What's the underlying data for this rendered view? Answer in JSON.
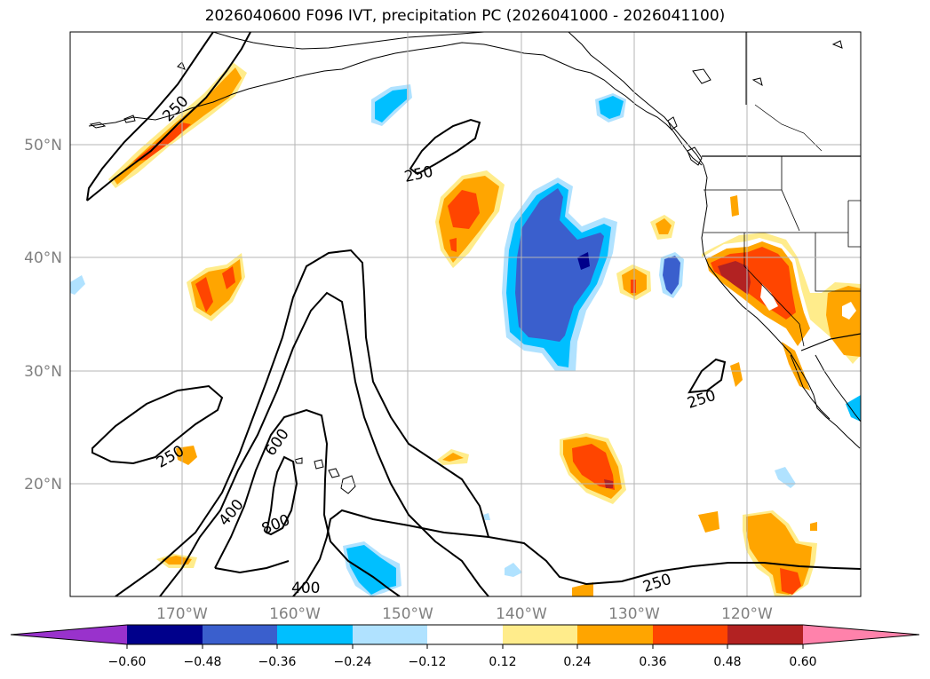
{
  "title": "2026040600 F096 IVT, precipitation PC (2026041000 - 2026041100)",
  "axes": {
    "lon_labels": [
      "170°W",
      "160°W",
      "150°W",
      "140°W",
      "130°W",
      "120°W"
    ],
    "lat_labels": [
      "20°N",
      "30°N",
      "40°N",
      "50°N"
    ]
  },
  "colorbar": {
    "tick_labels": [
      "−0.60",
      "−0.48",
      "−0.36",
      "−0.24",
      "−0.12",
      "0.12",
      "0.24",
      "0.36",
      "0.48",
      "0.60"
    ],
    "colors": [
      "#9932cc",
      "#00008b",
      "#3a5fcd",
      "#00bfff",
      "#b0e2ff",
      "#ffffff",
      "#ffec8b",
      "#ffa500",
      "#ff4500",
      "#b22222",
      "#ff82ab"
    ]
  },
  "ivt_contour_labels": [
    "250",
    "250",
    "250",
    "250",
    "250",
    "400",
    "400",
    "600",
    "800"
  ],
  "colors": {
    "shade_yellow": "#ffec8b",
    "shade_orange": "#ffa500",
    "shade_redorange": "#ff4500",
    "shade_darkred": "#b22222",
    "shade_lightblue": "#b0e2ff",
    "shade_deepsky": "#00bfff",
    "shade_royal": "#3a5fcd",
    "shade_navy": "#00008b"
  }
}
